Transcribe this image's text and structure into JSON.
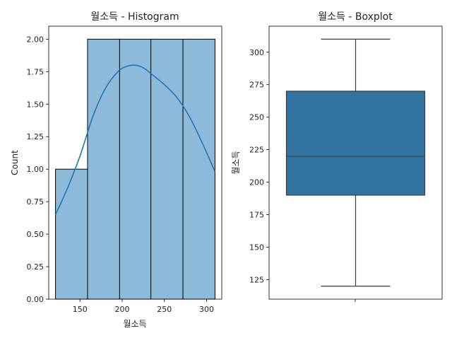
{
  "chart_data": [
    {
      "type": "bar",
      "title": "월소득 - Histogram",
      "xlabel": "월소득",
      "ylabel": "Count",
      "bins": [
        {
          "start": 121,
          "end": 159,
          "count": 1
        },
        {
          "start": 159,
          "end": 197,
          "count": 2
        },
        {
          "start": 197,
          "end": 234,
          "count": 2
        },
        {
          "start": 234,
          "end": 272,
          "count": 2
        },
        {
          "start": 272,
          "end": 310,
          "count": 2
        }
      ],
      "kde": {
        "x": [
          121,
          135,
          150,
          165,
          180,
          195,
          205,
          215,
          225,
          235,
          250,
          265,
          280,
          295,
          310
        ],
        "y": [
          0.65,
          0.85,
          1.1,
          1.4,
          1.62,
          1.75,
          1.79,
          1.8,
          1.78,
          1.73,
          1.65,
          1.55,
          1.4,
          1.2,
          0.98
        ]
      },
      "xlim": [
        113,
        318
      ],
      "ylim": [
        0,
        2.1
      ],
      "xticks": [
        150,
        200,
        250,
        300
      ],
      "yticks": [
        0.0,
        0.25,
        0.5,
        0.75,
        1.0,
        1.25,
        1.5,
        1.75,
        2.0
      ],
      "ytick_labels": [
        "0.00",
        "0.25",
        "0.50",
        "0.75",
        "1.00",
        "1.25",
        "1.50",
        "1.75",
        "2.00"
      ],
      "bar_color": "#8dbadb",
      "bar_edge": "#000000",
      "kde_color": "#1f77b4",
      "grid": false
    },
    {
      "type": "box",
      "title": "월소득 - Boxplot",
      "ylabel": "월소득",
      "stats": {
        "min": 120,
        "q1": 190,
        "median": 220,
        "q3": 270,
        "max": 310
      },
      "ylim": [
        110,
        320
      ],
      "yticks": [
        125,
        150,
        175,
        200,
        225,
        250,
        275,
        300
      ],
      "box_color": "#3274a1",
      "line_color": "#3c3c3c",
      "grid": false
    }
  ]
}
